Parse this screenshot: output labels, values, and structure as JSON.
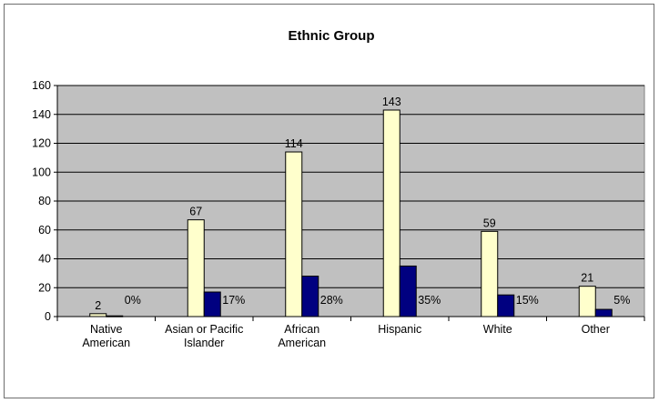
{
  "chart_data": {
    "type": "bar",
    "title": "Ethnic Group",
    "categories": [
      [
        "Native",
        "American"
      ],
      [
        "Asian or Pacific",
        "Islander"
      ],
      [
        "African",
        "American"
      ],
      [
        "Hispanic"
      ],
      [
        "White"
      ],
      [
        "Other"
      ]
    ],
    "series": [
      {
        "values": [
          2,
          67,
          114,
          143,
          59,
          21
        ],
        "labels": [
          "2",
          "67",
          "114",
          "143",
          "59",
          "21"
        ],
        "color": "#ffffcc"
      },
      {
        "values": [
          0.5,
          17,
          28,
          35,
          15,
          5
        ],
        "labels": [
          "0%",
          "17%",
          "28%",
          "35%",
          "15%",
          "5%"
        ],
        "color": "#000080"
      }
    ],
    "yticks": [
      "0",
      "20",
      "40",
      "60",
      "80",
      "100",
      "120",
      "140",
      "160"
    ],
    "ylim": [
      0,
      160
    ],
    "grid": true,
    "plot_background": "#c0c0c0",
    "legend": "none"
  }
}
